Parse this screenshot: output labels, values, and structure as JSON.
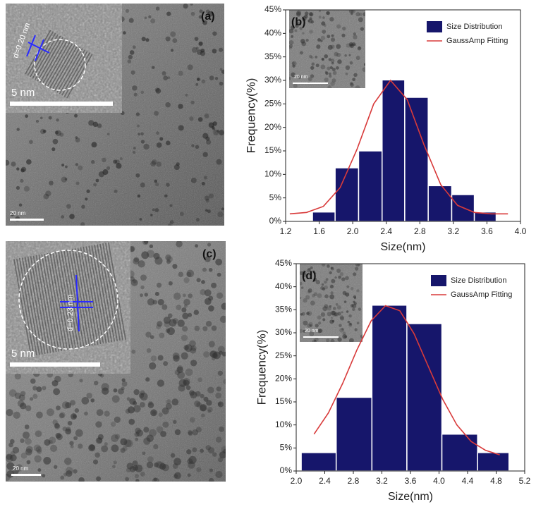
{
  "images": [
    {
      "panel_label": "(a)",
      "scale_label": "20 nm",
      "inset_scale_label": "5 nm",
      "annotation": "d=0.20 nm"
    },
    {
      "panel_label": "(c)",
      "scale_label": "20 nm",
      "inset_scale_label": "5 nm",
      "annotation": "d=0.23 nm"
    }
  ],
  "chart_data": [
    {
      "type": "histogram",
      "panel_label": "(b)",
      "inset_label": "20 nm",
      "xlabel": "Size(nm)",
      "ylabel": "Frequency(%)",
      "bins": [
        1.52,
        1.79,
        2.07,
        2.35,
        2.62,
        2.9,
        3.18,
        3.45,
        3.71
      ],
      "series": [
        {
          "name": "Size Distribution",
          "color": "#16166b",
          "values": [
            2.0,
            11.4,
            15.0,
            30.1,
            26.4,
            7.6,
            5.7,
            2.0
          ]
        },
        {
          "name": "GaussAmp Fitting",
          "color": "#d83a3a",
          "x": [
            1.25,
            1.45,
            1.65,
            1.85,
            2.05,
            2.25,
            2.45,
            2.65,
            2.85,
            3.05,
            3.25,
            3.45,
            3.65,
            3.85
          ],
          "values": [
            1.6,
            1.9,
            3.2,
            7.2,
            15.3,
            25.0,
            30.0,
            25.9,
            16.3,
            7.8,
            3.4,
            1.9,
            1.6,
            1.6
          ]
        }
      ],
      "xlim": [
        1.2,
        4.0
      ],
      "xticks": [
        1.2,
        1.6,
        {
          "value": 2,
          "label": "2.0"
        },
        2.4,
        2.8,
        3.2,
        3.6,
        {
          "value": 4,
          "label": "4.0"
        }
      ],
      "ylim": [
        0,
        45
      ],
      "yticks": [
        {
          "value": 0,
          "label": "0%"
        },
        {
          "value": 5,
          "label": "5%"
        },
        {
          "value": 10,
          "label": "10%"
        },
        {
          "value": 15,
          "label": "15%"
        },
        {
          "value": 20,
          "label": "20%"
        },
        {
          "value": 25,
          "label": "25%"
        },
        {
          "value": 30,
          "label": "30%"
        },
        {
          "value": 35,
          "label": "35%"
        },
        {
          "value": 40,
          "label": "40%"
        },
        {
          "value": 45,
          "label": "45%"
        }
      ],
      "legend": "upper right"
    },
    {
      "type": "histogram",
      "panel_label": "(d)",
      "inset_label": "20 nm",
      "xlabel": "Size(nm)",
      "ylabel": "Frequency(%)",
      "bins": [
        2.07,
        2.56,
        3.06,
        3.55,
        4.04,
        4.54,
        4.98
      ],
      "series": [
        {
          "name": "Size Distribution",
          "color": "#16166b",
          "values": [
            4,
            16,
            36,
            32,
            8,
            4
          ]
        },
        {
          "name": "GaussAmp Fitting",
          "color": "#d83a3a",
          "x": [
            2.25,
            2.45,
            2.65,
            2.85,
            3.05,
            3.25,
            3.45,
            3.65,
            3.85,
            4.05,
            4.25,
            4.45,
            4.65,
            4.85
          ],
          "values": [
            8.0,
            12.6,
            19.0,
            26.3,
            32.6,
            35.9,
            34.8,
            29.8,
            22.7,
            15.6,
            10.0,
            6.4,
            4.5,
            3.5
          ]
        }
      ],
      "xlim": [
        2.0,
        5.2
      ],
      "xticks": [
        {
          "value": 2,
          "label": "2.0"
        },
        2.4,
        2.8,
        3.2,
        3.6,
        {
          "value": 4,
          "label": "4.0"
        },
        4.4,
        4.8,
        5.2
      ],
      "ylim": [
        0,
        45
      ],
      "yticks": [
        {
          "value": 0,
          "label": "0%"
        },
        {
          "value": 5,
          "label": "5%"
        },
        {
          "value": 10,
          "label": "10%"
        },
        {
          "value": 15,
          "label": "15%"
        },
        {
          "value": 20,
          "label": "20%"
        },
        {
          "value": 25,
          "label": "25%"
        },
        {
          "value": 30,
          "label": "30%"
        },
        {
          "value": 35,
          "label": "35%"
        },
        {
          "value": 40,
          "label": "40%"
        },
        {
          "value": 45,
          "label": "45%"
        }
      ],
      "legend": "upper right"
    }
  ]
}
